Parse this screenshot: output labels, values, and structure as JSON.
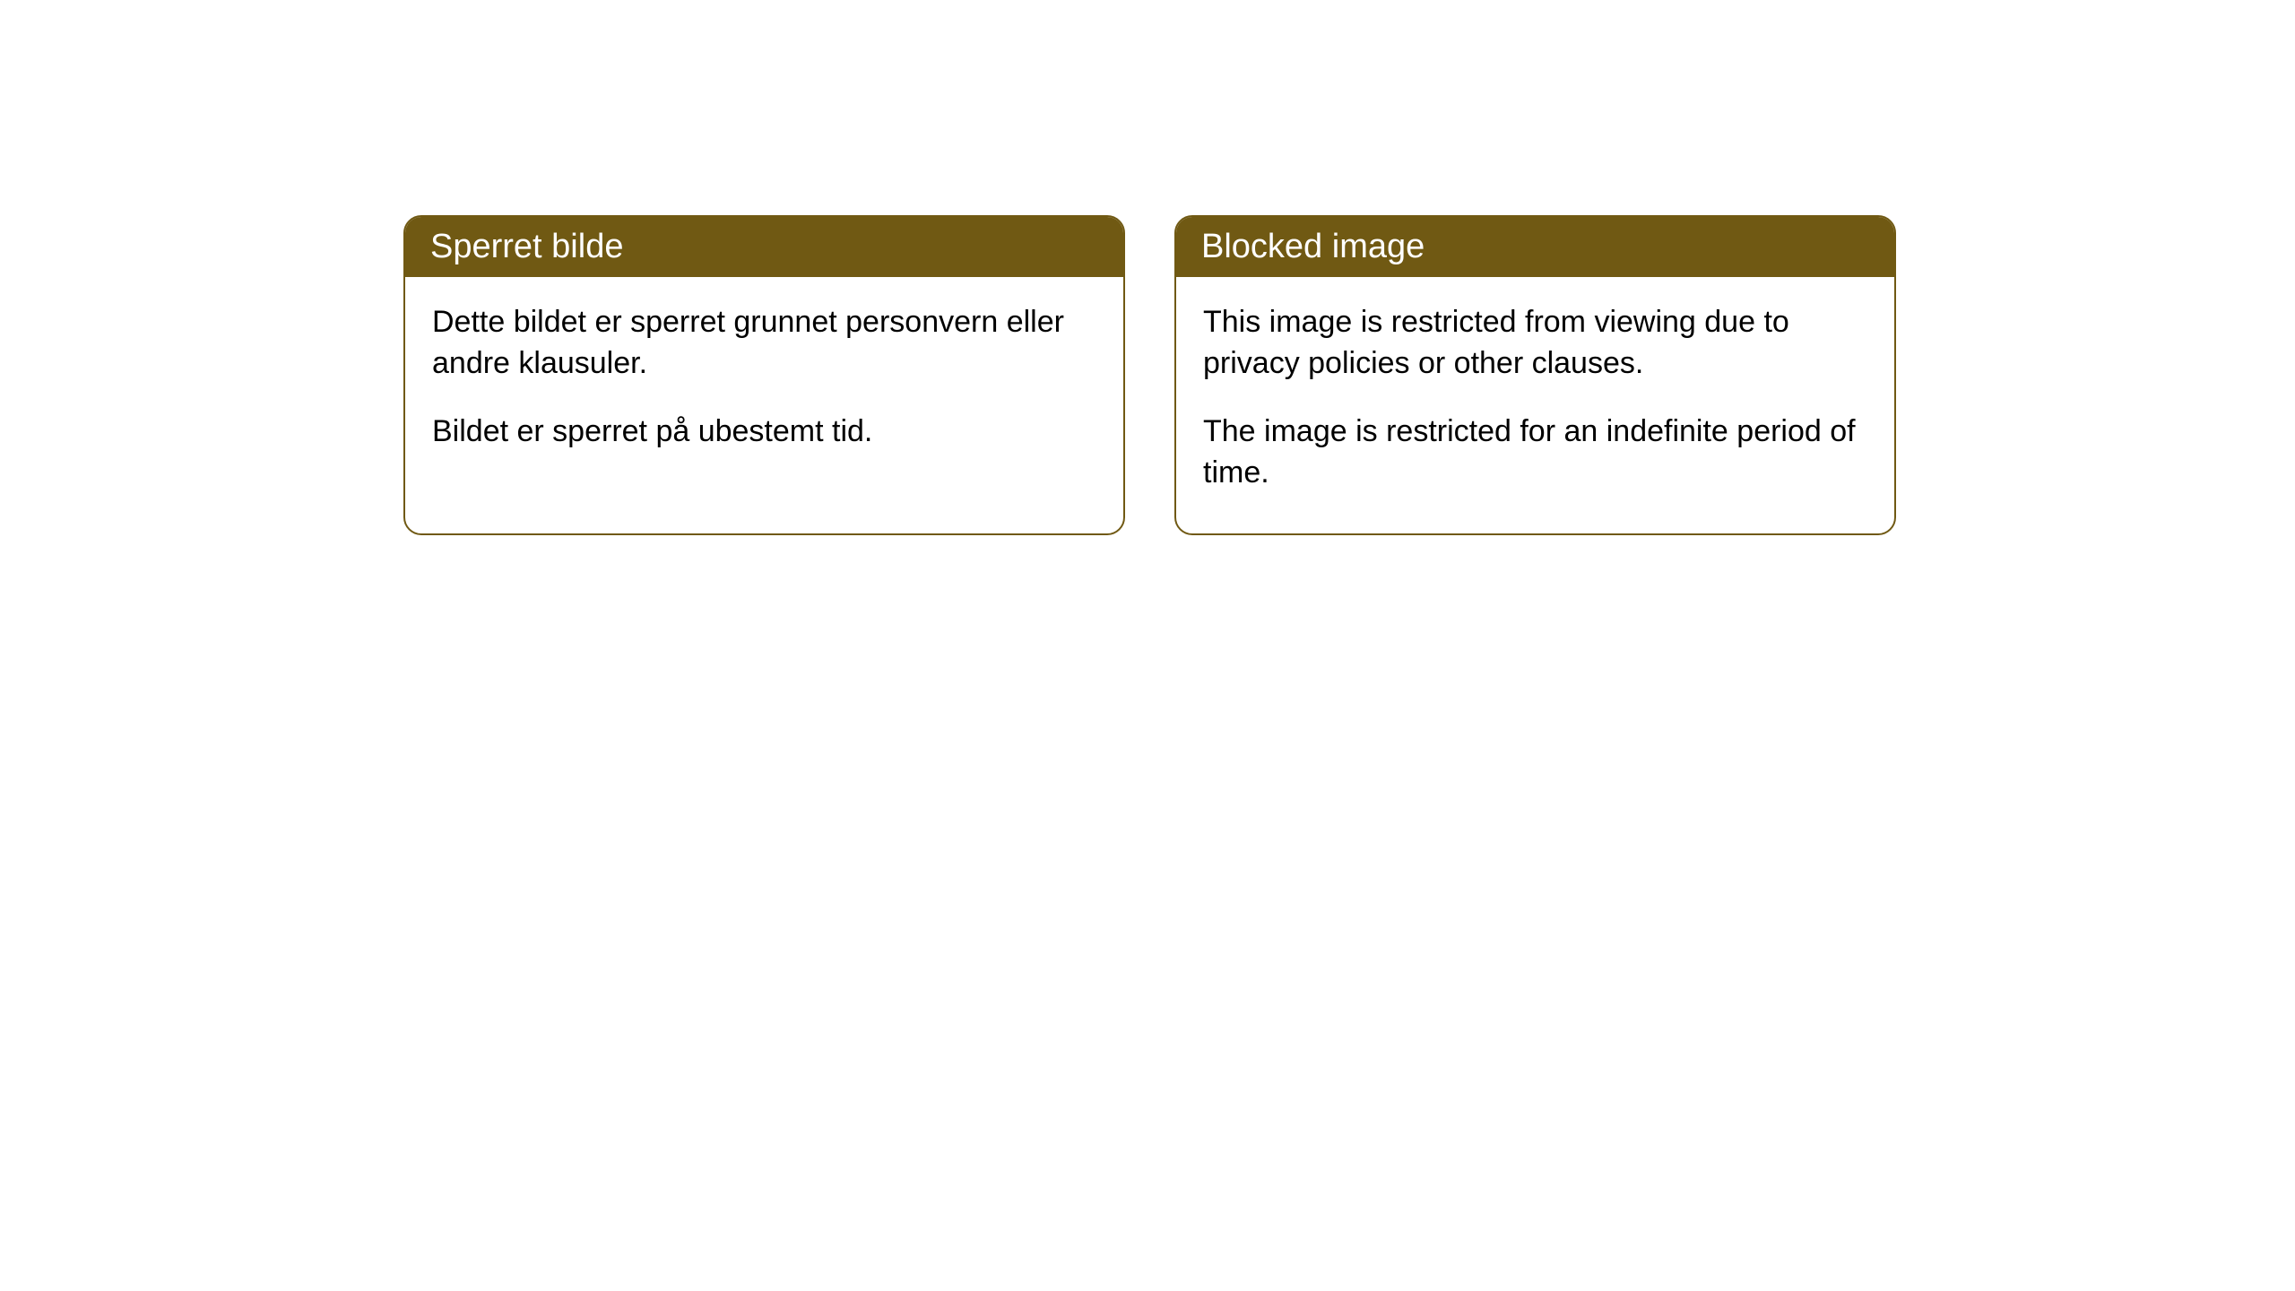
{
  "cards": [
    {
      "title": "Sperret bilde",
      "para1": "Dette bildet er sperret grunnet personvern eller andre klausuler.",
      "para2": "Bildet er sperret på ubestemt tid."
    },
    {
      "title": "Blocked image",
      "para1": "This image is restricted from viewing due to privacy policies or other clauses.",
      "para2": "The image is restricted for an indefinite period of time."
    }
  ],
  "style": {
    "header_bg": "#705913",
    "header_text_color": "#ffffff",
    "border_color": "#705913",
    "body_bg": "#ffffff",
    "body_text_color": "#000000",
    "border_radius": 20,
    "header_fontsize": 38,
    "body_fontsize": 34
  }
}
